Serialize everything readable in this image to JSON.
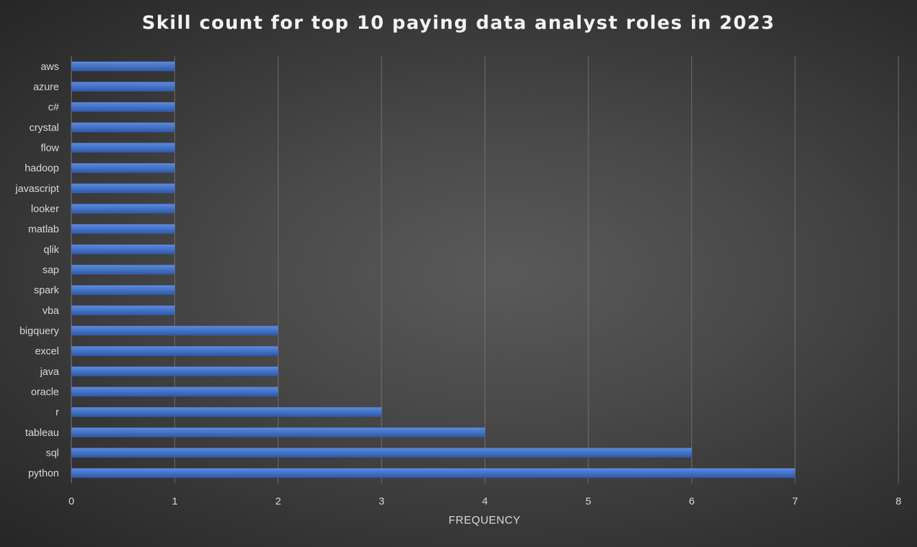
{
  "chart_data": {
    "type": "bar",
    "orientation": "horizontal",
    "title": "Skill count for top 10 paying data analyst roles in 2023",
    "xlabel": "FREQUENCY",
    "ylabel": "",
    "xlim": [
      0,
      8
    ],
    "xticks": [
      0,
      1,
      2,
      3,
      4,
      5,
      6,
      7,
      8
    ],
    "grid": "vertical",
    "categories": [
      "aws",
      "azure",
      "c#",
      "crystal",
      "flow",
      "hadoop",
      "javascript",
      "looker",
      "matlab",
      "qlik",
      "sap",
      "spark",
      "vba",
      "bigquery",
      "excel",
      "java",
      "oracle",
      "r",
      "tableau",
      "sql",
      "python"
    ],
    "values": [
      1,
      1,
      1,
      1,
      1,
      1,
      1,
      1,
      1,
      1,
      1,
      1,
      1,
      2,
      2,
      2,
      2,
      3,
      4,
      6,
      7
    ],
    "colors": {
      "bar": "#4472c4",
      "bar_light": "#5b8ae0",
      "bar_dark": "#2f58a8",
      "grid": "#7f7f7f",
      "text": "#d9d9d9",
      "title": "#f2f2f2"
    }
  }
}
